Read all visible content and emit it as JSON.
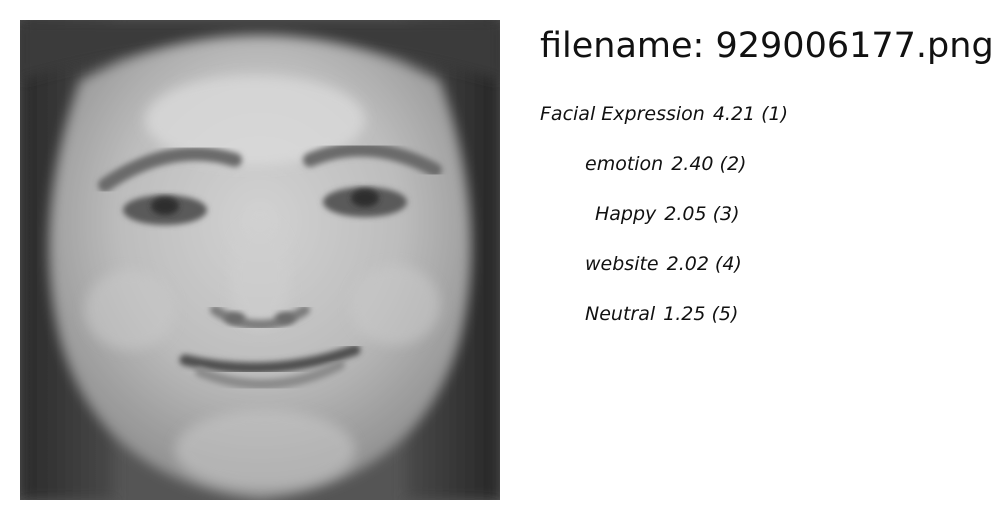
{
  "image": {
    "subject": "face-photo"
  },
  "filename": {
    "prefix": "filename:",
    "value": "929006177.png"
  },
  "labels": [
    {
      "name": "Facial Expression",
      "score": "4.21",
      "rank": "(1)"
    },
    {
      "name": "emotion",
      "score": "2.40",
      "rank": "(2)"
    },
    {
      "name": "Happy",
      "score": "2.05",
      "rank": "(3)"
    },
    {
      "name": "website",
      "score": "2.02",
      "rank": "(4)"
    },
    {
      "name": "Neutral",
      "score": "1.25",
      "rank": "(5)"
    }
  ]
}
